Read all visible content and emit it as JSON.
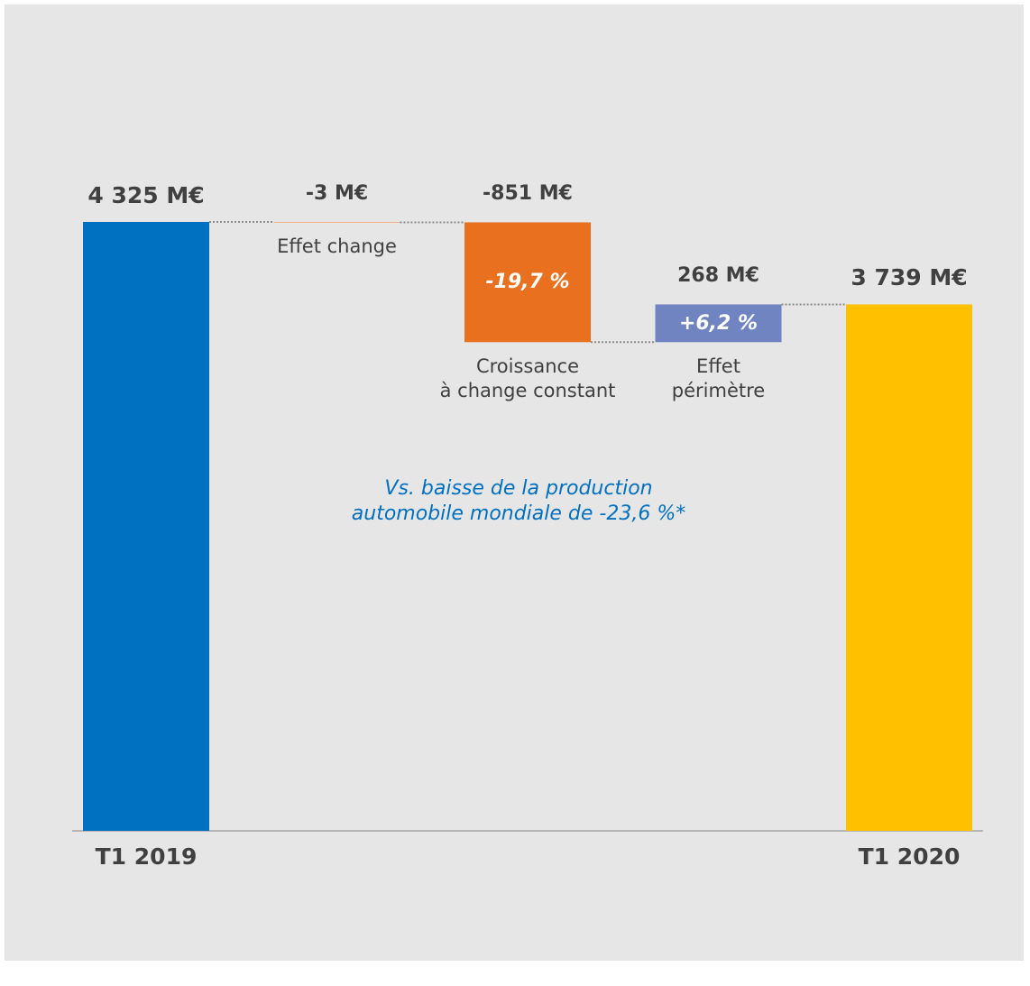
{
  "chart_data": {
    "type": "waterfall",
    "categories": [
      "T1 2019",
      "Effet change",
      "Croissance\nà change constant",
      "Effet\npérimètre",
      "T1 2020"
    ],
    "values": [
      4325,
      -3,
      -851,
      268,
      3739
    ],
    "value_labels": [
      "4 325 M€",
      "-3 M€",
      "-851 M€",
      "268 M€",
      "3 739 M€"
    ],
    "is_total": [
      true,
      false,
      false,
      false,
      true
    ],
    "colors": [
      "#0070c0",
      "#f4b183",
      "#e8701f",
      "#6f84c1",
      "#ffc000"
    ],
    "bar_annotations": [
      null,
      null,
      "-19,7 %",
      "+6,2 %",
      null
    ],
    "note": "Vs. baisse de la production\nautomobile mondiale de -23,6 %*"
  }
}
